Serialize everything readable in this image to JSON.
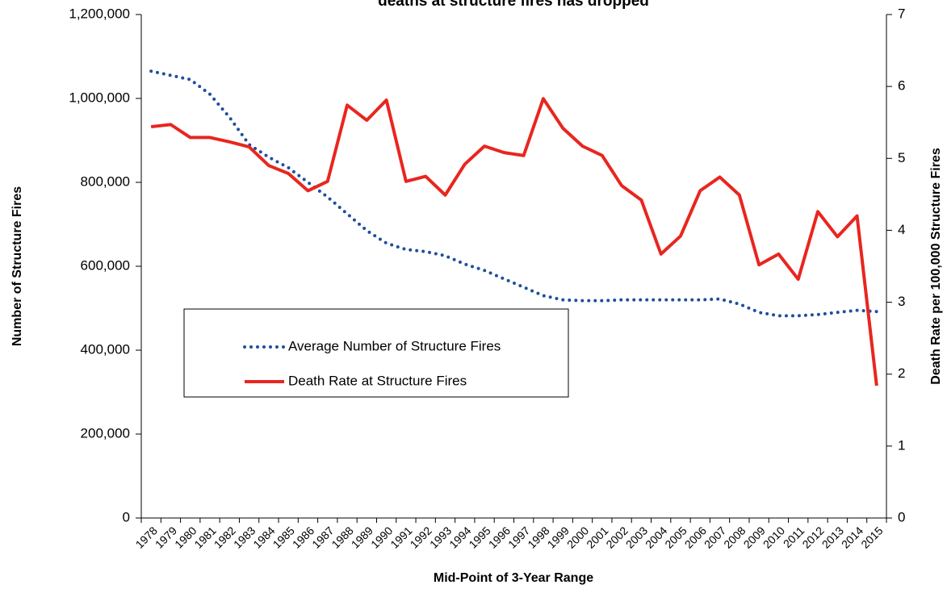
{
  "chart_data": {
    "type": "line",
    "title": "deaths at structure fires has dropped",
    "x_label": "Mid-Point of 3-Year Range",
    "y_label": "Number of Structure Fires",
    "y2_label": "Death Rate per 100,000 Structure Fires",
    "categories": [
      "1978",
      "1979",
      "1980",
      "1981",
      "1982",
      "1983",
      "1984",
      "1985",
      "1986",
      "1987",
      "1988",
      "1989",
      "1990",
      "1991",
      "1992",
      "1993",
      "1994",
      "1995",
      "1996",
      "1997",
      "1998",
      "1999",
      "2000",
      "2001",
      "2002",
      "2003",
      "2004",
      "2005",
      "2006",
      "2007",
      "2008",
      "2009",
      "2010",
      "2011",
      "2012",
      "2013",
      "2014",
      "2015"
    ],
    "series": [
      {
        "name": "Average Number of Structure Fires",
        "color": "#1f4e9c",
        "style": "dotted",
        "axis": "y",
        "values": [
          1065000,
          1055000,
          1045000,
          1010000,
          955000,
          890000,
          860000,
          835000,
          800000,
          765000,
          725000,
          685000,
          655000,
          640000,
          635000,
          625000,
          605000,
          590000,
          570000,
          550000,
          530000,
          520000,
          518000,
          518000,
          520000,
          520000,
          520000,
          520000,
          520000,
          522000,
          510000,
          490000,
          482000,
          482000,
          485000,
          490000,
          495000,
          492000
        ]
      },
      {
        "name": "Death Rate at Structure Fires",
        "color": "#e8261f",
        "style": "solid",
        "axis": "y2",
        "values": [
          5.44,
          5.47,
          5.29,
          5.29,
          5.23,
          5.16,
          4.9,
          4.79,
          4.55,
          4.68,
          5.74,
          5.53,
          5.81,
          4.68,
          4.75,
          4.49,
          4.92,
          5.17,
          5.08,
          5.04,
          5.83,
          5.42,
          5.17,
          5.04,
          4.62,
          4.42,
          3.67,
          3.92,
          4.55,
          4.74,
          4.49,
          3.52,
          3.67,
          3.32,
          4.26,
          3.91,
          4.2,
          1.84
        ]
      }
    ],
    "ylim": [
      0,
      1200000
    ],
    "yticks": [
      0,
      {
        "value": 200000,
        "label": "200,000"
      },
      {
        "value": 400000,
        "label": "400,000"
      },
      {
        "value": 600000,
        "label": "600,000"
      },
      {
        "value": 800000,
        "label": "800,000"
      },
      {
        "value": 1000000,
        "label": "1,000,000"
      },
      {
        "value": 1200000,
        "label": "1,200,000"
      }
    ],
    "y2lim": [
      0,
      7
    ],
    "y2ticks": [
      0,
      1,
      2,
      3,
      4,
      5,
      6,
      7
    ],
    "grid": false
  }
}
